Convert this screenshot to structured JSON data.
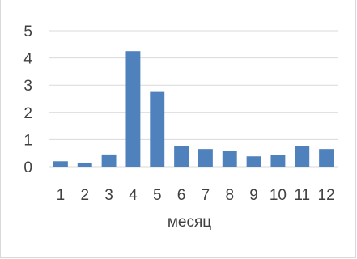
{
  "chart_data": {
    "type": "bar",
    "title": "",
    "xlabel": "месяц",
    "ylabel": "",
    "categories": [
      "1",
      "2",
      "3",
      "4",
      "5",
      "6",
      "7",
      "8",
      "9",
      "10",
      "11",
      "12"
    ],
    "values": [
      0.2,
      0.15,
      0.45,
      4.25,
      2.75,
      0.75,
      0.65,
      0.58,
      0.38,
      0.42,
      0.75,
      0.65
    ],
    "ylim": [
      0,
      5
    ],
    "yticks": [
      "0",
      "1",
      "2",
      "3",
      "4",
      "5"
    ],
    "grid": true,
    "legend": "none",
    "colors": {
      "bar": "#4f81bd",
      "grid": "#d9d9d9",
      "text": "#404040"
    }
  }
}
